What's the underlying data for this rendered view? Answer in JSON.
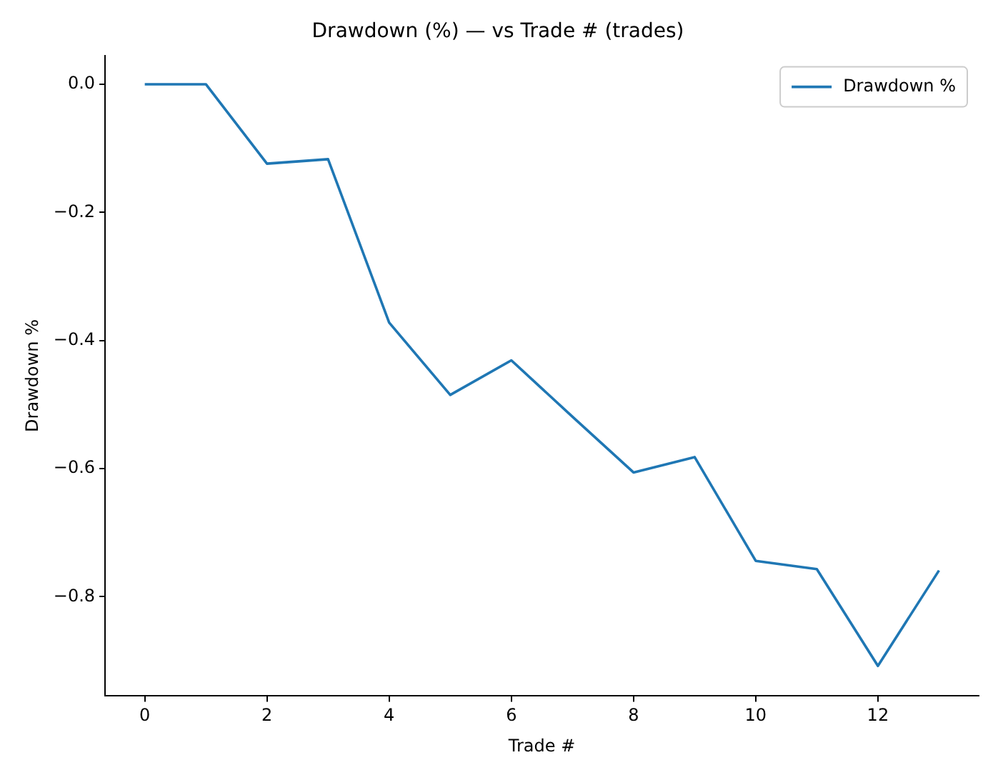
{
  "chart_data": {
    "type": "line",
    "title": "Drawdown (%) — vs Trade # (trades)",
    "xlabel": "Trade #",
    "ylabel": "Drawdown %",
    "x": [
      0,
      1,
      2,
      3,
      4,
      5,
      6,
      7,
      8,
      9,
      10,
      11,
      12,
      13
    ],
    "series": [
      {
        "name": "Drawdown %",
        "color": "#1f77b4",
        "values": [
          0,
          0,
          -0.124,
          -0.117,
          -0.372,
          -0.485,
          -0.431,
          -0.519,
          -0.606,
          -0.582,
          -0.744,
          -0.757,
          -0.908,
          -0.759
        ]
      }
    ],
    "xlim": [
      -0.65,
      13.65
    ],
    "xticks": [
      0,
      2,
      4,
      6,
      8,
      10,
      12
    ],
    "ylim": [
      -0.955,
      0.045
    ],
    "yticks": [
      {
        "value": 0,
        "label": "0.0"
      },
      -0.2,
      -0.4,
      -0.6,
      -0.8
    ],
    "grid": false,
    "legend": "top right",
    "marker": "none",
    "line_style": "solid"
  }
}
